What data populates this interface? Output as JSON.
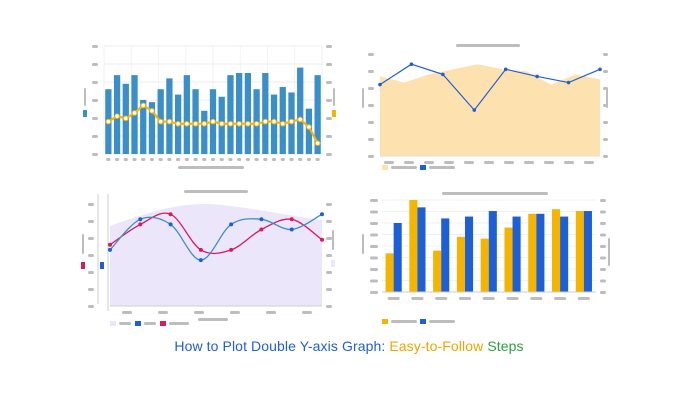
{
  "caption": {
    "part1": "How to Plot Double Y-axis Graph: ",
    "part2": "Easy-to-Follow",
    "part3": " Steps"
  },
  "colors": {
    "blue": "#3a8fc9",
    "bar_blue": "#2e7dc4",
    "royal": "#1f5fd6",
    "orange": "#f5b400",
    "peach": "#fde2b0",
    "lavender": "#ece6fb",
    "red": "#d81b60",
    "placeholder": "#bdbdbd",
    "caption_blue": "#1f5fd6",
    "caption_orange": "#f0a500",
    "caption_green": "#2e9e3f"
  },
  "charts": [
    {
      "type": "bar",
      "icon": "bar-line-combo-chart",
      "bars": [
        0.6,
        0.73,
        0.65,
        0.73,
        0.5,
        0.48,
        0.6,
        0.7,
        0.55,
        0.73,
        0.6,
        0.4,
        0.6,
        0.53,
        0.73,
        0.75,
        0.75,
        0.6,
        0.75,
        0.55,
        0.62,
        0.57,
        0.8,
        0.42,
        0.73
      ],
      "line": [
        0.3,
        0.35,
        0.33,
        0.38,
        0.45,
        0.4,
        0.3,
        0.3,
        0.28,
        0.28,
        0.28,
        0.28,
        0.3,
        0.28,
        0.28,
        0.28,
        0.28,
        0.28,
        0.3,
        0.3,
        0.28,
        0.3,
        0.32,
        0.25,
        0.1
      ]
    },
    {
      "type": "area",
      "icon": "area-line-combo-chart",
      "area": [
        0.78,
        0.72,
        0.8,
        0.85,
        0.9,
        0.85,
        0.83,
        0.7,
        0.8,
        0.75
      ],
      "line": [
        0.7,
        0.9,
        0.8,
        0.45,
        0.85,
        0.78,
        0.72,
        0.85
      ]
    },
    {
      "type": "line",
      "icon": "smooth-line-area-chart",
      "series_a": [
        0.55,
        0.85,
        0.8,
        0.45,
        0.8,
        0.85,
        0.75,
        0.9
      ],
      "series_b": [
        0.6,
        0.8,
        0.9,
        0.55,
        0.55,
        0.75,
        0.85,
        0.65
      ]
    },
    {
      "type": "bar",
      "icon": "grouped-bar-chart",
      "orange": [
        0.42,
        1.0,
        0.45,
        0.6,
        0.58,
        0.7,
        0.85,
        0.9,
        0.88
      ],
      "blue": [
        0.75,
        0.92,
        0.8,
        0.82,
        0.88,
        0.82,
        0.85,
        0.82,
        0.88
      ]
    }
  ]
}
